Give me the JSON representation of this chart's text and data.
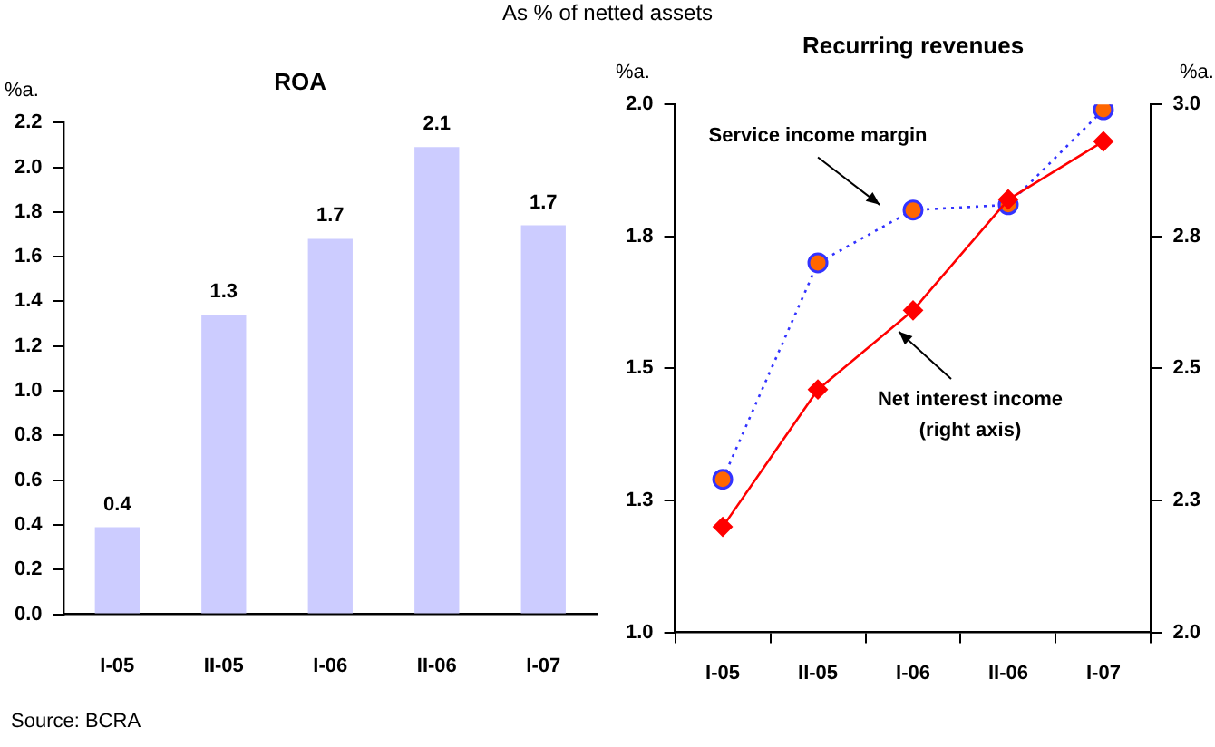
{
  "chart_data": [
    {
      "type": "bar",
      "title": "ROA",
      "subtitle": "As % of netted assets",
      "ylabel": "%a.",
      "categories": [
        "I-05",
        "II-05",
        "I-06",
        "II-06",
        "I-07"
      ],
      "values": [
        0.39,
        1.34,
        1.68,
        2.09,
        1.74
      ],
      "color": "#ccccff",
      "value_labels": [
        "0.4",
        "1.3",
        "1.7",
        "2.1",
        "1.7"
      ],
      "ylim": [
        0,
        2.2
      ],
      "yticks": [
        {
          "value": 0,
          "label": "0.0"
        },
        {
          "value": 0.2,
          "label": "0.2"
        },
        {
          "value": 0.4,
          "label": "0.4"
        },
        {
          "value": 0.6,
          "label": "0.6"
        },
        {
          "value": 0.8,
          "label": "0.8"
        },
        {
          "value": 1.0,
          "label": "1.0"
        },
        {
          "value": 1.2,
          "label": "1.2"
        },
        {
          "value": 1.4,
          "label": "1.4"
        },
        {
          "value": 1.6,
          "label": "1.6"
        },
        {
          "value": 1.8,
          "label": "1.8"
        },
        {
          "value": 2.0,
          "label": "2.0"
        },
        {
          "value": 2.2,
          "label": "2.2"
        }
      ],
      "annotations": [
        "Source: BCRA"
      ]
    },
    {
      "type": "line",
      "title": "Recurring revenues",
      "ylabel": "%a.",
      "y2label": "%a.",
      "categories": [
        "I-05",
        "II-05",
        "I-06",
        "II-06",
        "I-07"
      ],
      "series": [
        {
          "name": "Service income margin",
          "color": "#3333ff",
          "colors": [
            "#ff6600",
            "#ff6600",
            "#ff6600",
            "#ff6600",
            "#ff6600"
          ],
          "values": [
            1.29,
            1.7,
            1.8,
            1.81,
            1.99
          ],
          "marker": "circle",
          "line_style": "dotted"
        },
        {
          "name": "Net interest income (right axis)",
          "color": "#ff0000",
          "values": [
            2.2,
            2.46,
            2.61,
            2.82,
            2.93
          ],
          "marker": "diamond",
          "line_style": "solid",
          "axis": "y2"
        }
      ],
      "ylim": [
        1.0,
        2.0
      ],
      "yticks": [
        {
          "value": 1.0,
          "label": "1.0"
        },
        {
          "value": 1.25,
          "label": "1.3"
        },
        {
          "value": 1.5,
          "label": "1.5"
        },
        {
          "value": 1.75,
          "label": "1.8"
        },
        {
          "value": 2.0,
          "label": "2.0"
        }
      ],
      "y2lim": [
        2.0,
        3.0
      ],
      "y2ticks": [
        {
          "value": 2.0,
          "label": "2.0"
        },
        {
          "value": 2.25,
          "label": "2.3"
        },
        {
          "value": 2.5,
          "label": "2.5"
        },
        {
          "value": 2.75,
          "label": "2.8"
        },
        {
          "value": 3.0,
          "label": "3.0"
        }
      ]
    }
  ]
}
